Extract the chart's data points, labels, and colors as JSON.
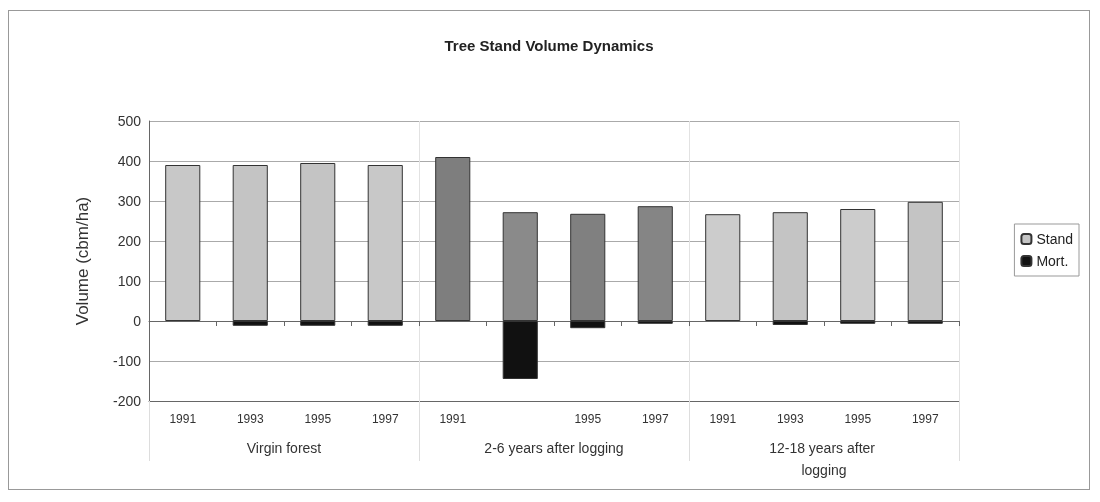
{
  "chart_data": {
    "type": "bar",
    "title": "Tree Stand Volume Dynamics",
    "ylabel": "Volume (cbm/ha)",
    "categories": [
      "1991",
      "1993",
      "1995",
      "1997",
      "1991",
      null,
      "1995",
      "1997",
      "1991",
      "1993",
      "1995",
      "1997"
    ],
    "annotations": [
      "Virgin forest",
      "2-6 years after logging",
      "12-18 years after logging"
    ],
    "series": [
      {
        "name": "Stand",
        "color": "#c4c4c4",
        "colors": [
          "#c8c8c8",
          "#c4c4c4",
          "#c4c4c4",
          "#c8c8c8",
          "#7e7e7e",
          "#8a8a8a",
          "#808080",
          "#858585",
          "#cccccc",
          "#c4c4c4",
          "#cccccc",
          "#c4c4c4"
        ],
        "values": [
          390,
          390,
          395,
          390,
          410,
          272,
          268,
          287,
          267,
          272,
          280,
          298
        ]
      },
      {
        "name": "Mort.",
        "color": "#111111",
        "values": [
          null,
          -12,
          -12,
          -12,
          null,
          -145,
          -18,
          -7,
          null,
          -10,
          -7,
          -7
        ]
      }
    ],
    "stacked": true,
    "ylim": [
      -200,
      500
    ],
    "yticks": [
      -200,
      -100,
      0,
      100,
      200,
      300,
      400,
      500
    ],
    "grid": "y",
    "legend": "right"
  }
}
